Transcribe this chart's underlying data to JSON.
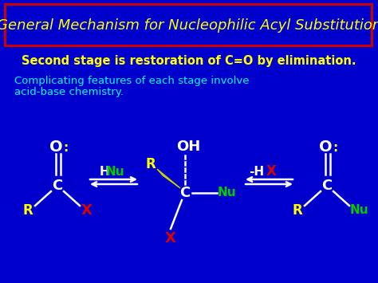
{
  "background_color": "#0000cc",
  "title_text": "General Mechanism for Nucleophilic Acyl Substitution",
  "title_color": "#ffff00",
  "title_box_color": "#cc0000",
  "line1_text": "Second stage is restoration of C=O by elimination.",
  "line1_color": "#ffff00",
  "line2a_text": "Complicating features of each stage involve",
  "line2b_text": "acid-base chemistry.",
  "line2_color": "#00ffff",
  "white": "#ffffff",
  "yellow": "#ffff00",
  "red": "#dd0000",
  "green": "#00cc00",
  "wedge_color": "#cccc00"
}
